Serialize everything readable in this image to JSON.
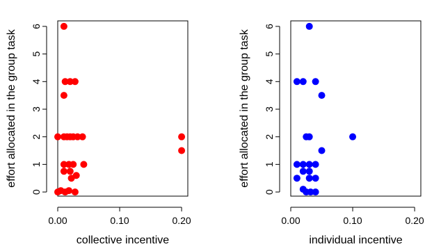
{
  "chart_data": [
    {
      "type": "scatter",
      "xlabel": "collective incentive",
      "ylabel": "effort allocated in the group task",
      "xlim": [
        0,
        0.21
      ],
      "ylim": [
        -0.15,
        6.2
      ],
      "xticks": [
        "0.00",
        "0.10",
        "0.20"
      ],
      "xtick_values": [
        0,
        0.1,
        0.2
      ],
      "yticks": [
        "0",
        "1",
        "2",
        "3",
        "4",
        "5",
        "6"
      ],
      "ytick_values": [
        0,
        1,
        2,
        3,
        4,
        5,
        6
      ],
      "color": "#ff0000",
      "points": [
        {
          "x": 0.01,
          "y": 6
        },
        {
          "x": 0.012,
          "y": 4
        },
        {
          "x": 0.02,
          "y": 4
        },
        {
          "x": 0.028,
          "y": 4
        },
        {
          "x": 0.01,
          "y": 3.5
        },
        {
          "x": 0.0,
          "y": 2
        },
        {
          "x": 0.01,
          "y": 2
        },
        {
          "x": 0.015,
          "y": 2
        },
        {
          "x": 0.02,
          "y": 2
        },
        {
          "x": 0.025,
          "y": 2
        },
        {
          "x": 0.032,
          "y": 2
        },
        {
          "x": 0.04,
          "y": 2
        },
        {
          "x": 0.2,
          "y": 2
        },
        {
          "x": 0.2,
          "y": 1.5
        },
        {
          "x": 0.01,
          "y": 1
        },
        {
          "x": 0.018,
          "y": 1
        },
        {
          "x": 0.025,
          "y": 1
        },
        {
          "x": 0.042,
          "y": 1
        },
        {
          "x": 0.01,
          "y": 0.75
        },
        {
          "x": 0.02,
          "y": 0.75
        },
        {
          "x": 0.03,
          "y": 0.6
        },
        {
          "x": 0.022,
          "y": 0.5
        },
        {
          "x": 0.0,
          "y": 0
        },
        {
          "x": 0.005,
          "y": 0.05
        },
        {
          "x": 0.012,
          "y": 0
        },
        {
          "x": 0.018,
          "y": 0.05
        },
        {
          "x": 0.028,
          "y": 0
        }
      ]
    },
    {
      "type": "scatter",
      "xlabel": "individual incentive",
      "ylabel": "effort allocated in the group task",
      "xlim": [
        0,
        0.21
      ],
      "ylim": [
        -0.15,
        6.2
      ],
      "xticks": [
        "0.00",
        "0.10",
        "0.20"
      ],
      "xtick_values": [
        0,
        0.1,
        0.2
      ],
      "yticks": [
        "0",
        "1",
        "2",
        "3",
        "4",
        "5",
        "6"
      ],
      "ytick_values": [
        0,
        1,
        2,
        3,
        4,
        5,
        6
      ],
      "color": "#0000ff",
      "points": [
        {
          "x": 0.03,
          "y": 6
        },
        {
          "x": 0.01,
          "y": 4
        },
        {
          "x": 0.02,
          "y": 4
        },
        {
          "x": 0.04,
          "y": 4
        },
        {
          "x": 0.05,
          "y": 3.5
        },
        {
          "x": 0.025,
          "y": 2
        },
        {
          "x": 0.03,
          "y": 2
        },
        {
          "x": 0.1,
          "y": 2
        },
        {
          "x": 0.05,
          "y": 1.5
        },
        {
          "x": 0.01,
          "y": 1
        },
        {
          "x": 0.02,
          "y": 1
        },
        {
          "x": 0.03,
          "y": 1
        },
        {
          "x": 0.04,
          "y": 1
        },
        {
          "x": 0.02,
          "y": 0.75
        },
        {
          "x": 0.03,
          "y": 0.75
        },
        {
          "x": 0.01,
          "y": 0.5
        },
        {
          "x": 0.03,
          "y": 0.5
        },
        {
          "x": 0.04,
          "y": 0.5
        },
        {
          "x": 0.02,
          "y": 0.1
        },
        {
          "x": 0.025,
          "y": 0
        },
        {
          "x": 0.032,
          "y": 0
        },
        {
          "x": 0.04,
          "y": 0
        }
      ]
    }
  ]
}
